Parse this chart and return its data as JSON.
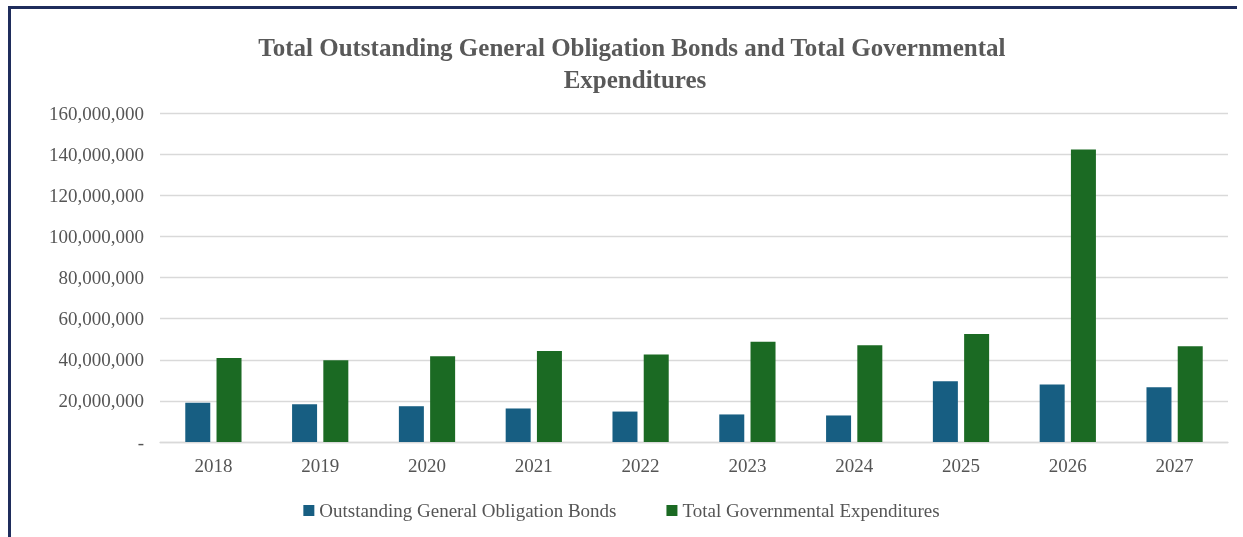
{
  "chart_data": {
    "type": "bar",
    "title": "Total Outstanding General Obligation Bonds and Total Governmental Expenditures",
    "categories": [
      "2018",
      "2019",
      "2020",
      "2021",
      "2022",
      "2023",
      "2024",
      "2025",
      "2026",
      "2027"
    ],
    "series": [
      {
        "name": "Outstanding General Obligation Bonds",
        "color": "#175e82",
        "values": [
          19100000,
          18300000,
          17400000,
          16300000,
          14800000,
          13400000,
          12900000,
          29600000,
          28000000,
          26600000
        ]
      },
      {
        "name": "Total Governmental Expenditures",
        "color": "#1b6a23",
        "values": [
          40900000,
          39700000,
          41700000,
          44200000,
          42600000,
          48700000,
          47000000,
          52500000,
          142300000,
          46600000
        ]
      }
    ],
    "ylim": [
      0,
      160000000
    ],
    "yticks": [
      {
        "value": 0,
        "label": "-"
      },
      {
        "value": 20000000,
        "label": "20,000,000"
      },
      {
        "value": 40000000,
        "label": "40,000,000"
      },
      {
        "value": 60000000,
        "label": "60,000,000"
      },
      {
        "value": 80000000,
        "label": "80,000,000"
      },
      {
        "value": 100000000,
        "label": "100,000,000"
      },
      {
        "value": 120000000,
        "label": "120,000,000"
      },
      {
        "value": 140000000,
        "label": "140,000,000"
      },
      {
        "value": 160000000,
        "label": "160,000,000"
      }
    ],
    "grid": "y",
    "legend": "bottom"
  }
}
